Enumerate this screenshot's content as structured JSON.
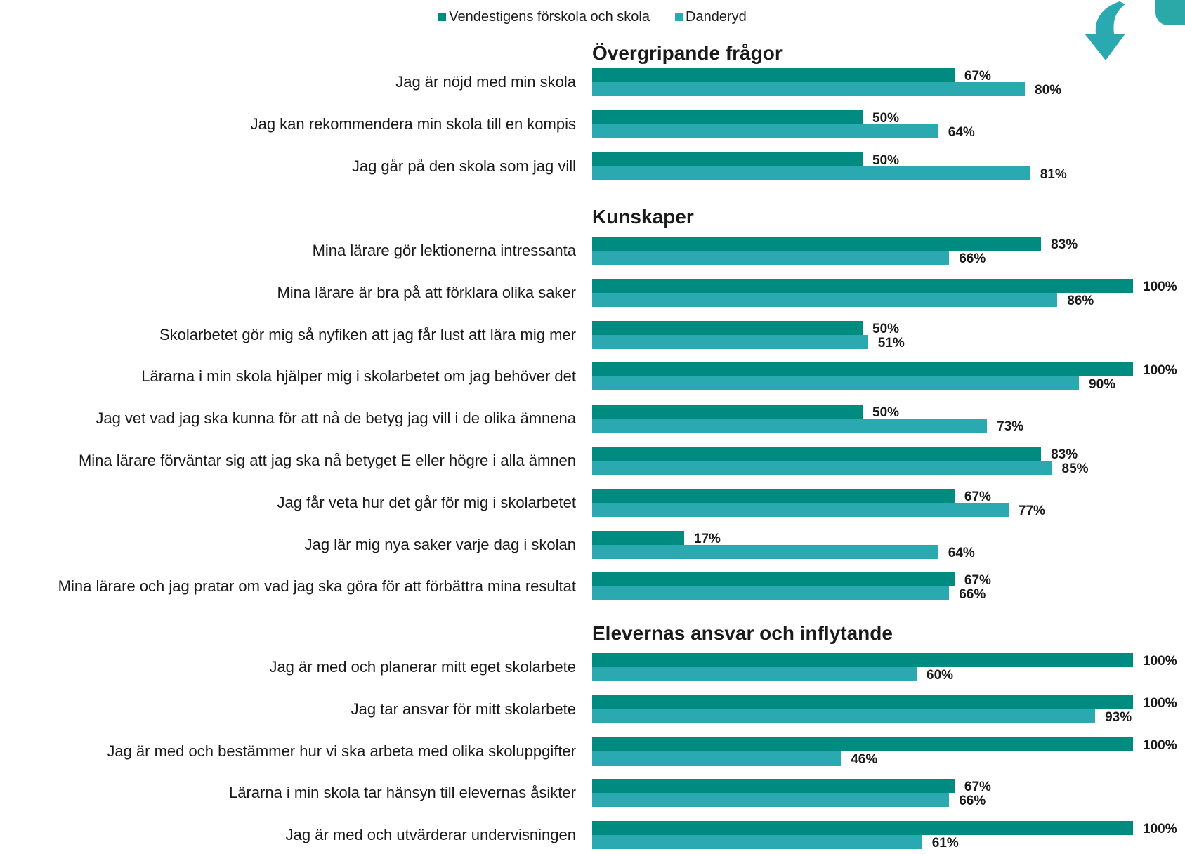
{
  "colors": {
    "school": "#008b80",
    "municipality": "#2aa9b0",
    "arrow": "#2aa9b0"
  },
  "legend": [
    {
      "label": "Vendestigens förskola och skola",
      "color": "#008b80"
    },
    {
      "label": "Danderyd",
      "color": "#2aa9b0"
    }
  ],
  "icons": {
    "corner_arrow": "curved-down-arrow-icon"
  },
  "chart_data": {
    "type": "bar",
    "orientation": "horizontal",
    "xlim": [
      0,
      100
    ],
    "unit": "%",
    "legend_position": "top",
    "grid": false,
    "series": [
      {
        "name": "Vendestigens förskola och skola",
        "color": "#008b80"
      },
      {
        "name": "Danderyd",
        "color": "#2aa9b0"
      }
    ],
    "sections": [
      {
        "title": "Övergripande frågor",
        "rows": [
          {
            "label": "Jag är nöjd med min skola",
            "values": [
              67,
              80
            ]
          },
          {
            "label": "Jag kan rekommendera min skola till en kompis",
            "values": [
              50,
              64
            ]
          },
          {
            "label": "Jag går på den skola som jag vill",
            "values": [
              50,
              81
            ]
          }
        ]
      },
      {
        "title": "Kunskaper",
        "rows": [
          {
            "label": "Mina lärare gör lektionerna intressanta",
            "values": [
              83,
              66
            ]
          },
          {
            "label": "Mina lärare är bra på att förklara olika saker",
            "values": [
              100,
              86
            ]
          },
          {
            "label": "Skolarbetet gör mig så nyfiken att jag får lust att lära mig mer",
            "values": [
              50,
              51
            ]
          },
          {
            "label": "Lärarna i min skola hjälper mig i skolarbetet om jag behöver det",
            "values": [
              100,
              90
            ]
          },
          {
            "label": "Jag vet vad jag ska kunna för att nå de betyg jag vill i de olika ämnena",
            "values": [
              50,
              73
            ]
          },
          {
            "label": "Mina lärare förväntar sig att jag ska nå betyget E eller högre i alla ämnen",
            "values": [
              83,
              85
            ]
          },
          {
            "label": "Jag får veta hur det går för mig i skolarbetet",
            "values": [
              67,
              77
            ]
          },
          {
            "label": "Jag lär mig nya saker varje dag i skolan",
            "values": [
              17,
              64
            ]
          },
          {
            "label": "Mina lärare och jag pratar om vad jag ska göra för att förbättra mina resultat",
            "values": [
              67,
              66
            ]
          }
        ]
      },
      {
        "title": "Elevernas ansvar och inflytande",
        "rows": [
          {
            "label": "Jag är med och planerar mitt eget skolarbete",
            "values": [
              100,
              60
            ]
          },
          {
            "label": "Jag tar ansvar för mitt skolarbete",
            "values": [
              100,
              93
            ]
          },
          {
            "label": "Jag är med och bestämmer hur vi ska arbeta med olika skoluppgifter",
            "values": [
              100,
              46
            ]
          },
          {
            "label": "Lärarna i min skola tar hänsyn till elevernas åsikter",
            "values": [
              67,
              66
            ]
          },
          {
            "label": "Jag är med och utvärderar undervisningen",
            "values": [
              100,
              61
            ]
          }
        ]
      }
    ]
  }
}
